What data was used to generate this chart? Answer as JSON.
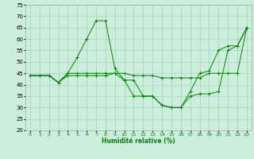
{
  "xlabel": "Humidité relative (%)",
  "xlim": [
    -0.5,
    23.5
  ],
  "ylim": [
    20,
    75
  ],
  "yticks": [
    20,
    25,
    30,
    35,
    40,
    45,
    50,
    55,
    60,
    65,
    70,
    75
  ],
  "xticks": [
    0,
    1,
    2,
    3,
    4,
    5,
    6,
    7,
    8,
    9,
    10,
    11,
    12,
    13,
    14,
    15,
    16,
    17,
    18,
    19,
    20,
    21,
    22,
    23
  ],
  "bg_color": "#cceedd",
  "grid_color": "#aaccbb",
  "line_color": "#008800",
  "lines": [
    [
      44,
      44,
      44,
      41,
      45,
      52,
      60,
      68,
      68,
      47,
      42,
      35,
      35,
      35,
      31,
      30,
      30,
      35,
      36,
      36,
      37,
      55,
      57,
      65
    ],
    [
      44,
      44,
      44,
      41,
      45,
      45,
      45,
      45,
      45,
      45,
      45,
      44,
      44,
      44,
      43,
      43,
      43,
      43,
      43,
      45,
      45,
      45,
      45,
      65
    ],
    [
      44,
      44,
      44,
      41,
      44,
      44,
      44,
      44,
      44,
      45,
      42,
      42,
      35,
      35,
      31,
      30,
      30,
      37,
      45,
      46,
      55,
      57,
      57,
      65
    ]
  ]
}
